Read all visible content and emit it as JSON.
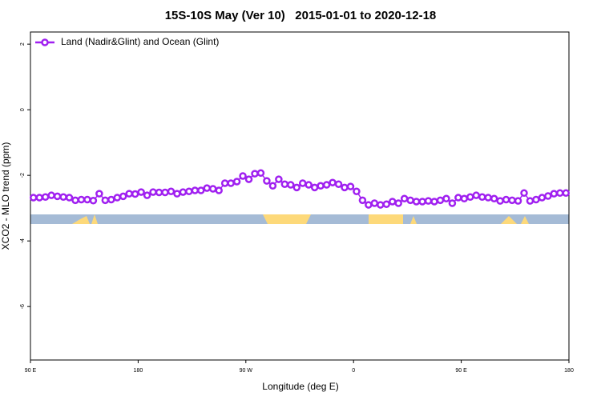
{
  "chart_data": {
    "type": "line",
    "title": "15S-10S May (Ver 10)   2015-01-01 to 2020-12-18",
    "xlabel": "Longitude (deg E)",
    "ylabel": "XCO2 - MLO trend (ppm)",
    "xlim": [
      90,
      540
    ],
    "ylim": [
      -7.63,
      2.37
    ],
    "xticks": [
      {
        "value": 90,
        "label": "90 E"
      },
      180,
      {
        "value": 270,
        "label": "90 W"
      },
      {
        "value": 360,
        "label": "0"
      },
      {
        "value": 450,
        "label": "90 E"
      },
      {
        "value": 540,
        "label": "180"
      }
    ],
    "yticks": [
      2,
      0,
      -2,
      -4,
      -6
    ],
    "legend": "top-left",
    "series": [
      {
        "name": "Land (Nadir&Glint) and Ocean (Glint)",
        "color": "#a020f0",
        "x": [
          92.5,
          97.5,
          102.5,
          107.5,
          112.5,
          117.5,
          122.5,
          127.5,
          132.5,
          137.5,
          142.5,
          147.5,
          152.5,
          157.5,
          162.5,
          167.5,
          172.5,
          177.5,
          182.5,
          187.5,
          192.5,
          197.5,
          202.5,
          207.5,
          212.5,
          217.5,
          222.5,
          227.5,
          232.5,
          237.5,
          242.5,
          247.5,
          252.5,
          257.5,
          262.5,
          267.5,
          272.5,
          277.5,
          282.5,
          287.5,
          292.5,
          297.5,
          302.5,
          307.5,
          312.5,
          317.5,
          322.5,
          327.5,
          332.5,
          337.5,
          342.5,
          347.5,
          352.5,
          357.5,
          362.5,
          367.5,
          372.5,
          377.5,
          382.5,
          387.5,
          392.5,
          397.5,
          402.5,
          407.5,
          412.5,
          417.5,
          422.5,
          427.5,
          432.5,
          437.5,
          442.5,
          447.5,
          452.5,
          457.5,
          462.5,
          467.5,
          472.5,
          477.5,
          482.5,
          487.5,
          492.5,
          497.5,
          502.5,
          507.5,
          512.5,
          517.5,
          522.5,
          527.5,
          532.5,
          537.5
        ],
        "values": [
          -2.68,
          -2.68,
          -2.66,
          -2.61,
          -2.64,
          -2.66,
          -2.68,
          -2.76,
          -2.74,
          -2.74,
          -2.77,
          -2.56,
          -2.76,
          -2.74,
          -2.68,
          -2.64,
          -2.56,
          -2.57,
          -2.51,
          -2.61,
          -2.51,
          -2.52,
          -2.52,
          -2.49,
          -2.56,
          -2.51,
          -2.49,
          -2.46,
          -2.46,
          -2.39,
          -2.41,
          -2.46,
          -2.24,
          -2.24,
          -2.19,
          -2.02,
          -2.12,
          -1.95,
          -1.93,
          -2.17,
          -2.32,
          -2.12,
          -2.27,
          -2.29,
          -2.37,
          -2.24,
          -2.29,
          -2.37,
          -2.32,
          -2.29,
          -2.22,
          -2.27,
          -2.37,
          -2.34,
          -2.49,
          -2.76,
          -2.9,
          -2.85,
          -2.9,
          -2.88,
          -2.8,
          -2.85,
          -2.71,
          -2.76,
          -2.8,
          -2.8,
          -2.78,
          -2.8,
          -2.76,
          -2.71,
          -2.85,
          -2.68,
          -2.71,
          -2.66,
          -2.61,
          -2.66,
          -2.68,
          -2.71,
          -2.78,
          -2.74,
          -2.76,
          -2.78,
          -2.54,
          -2.78,
          -2.74,
          -2.68,
          -2.63,
          -2.56,
          -2.54,
          -2.54
        ]
      }
    ]
  }
}
